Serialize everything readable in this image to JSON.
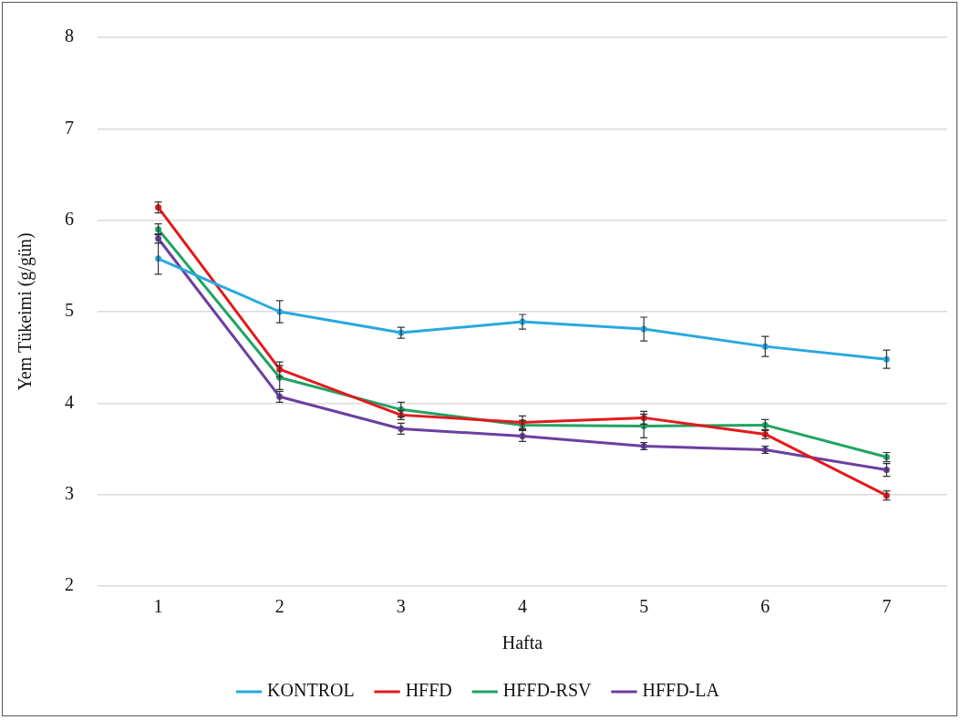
{
  "chart_data": {
    "type": "line",
    "xlabel": "Hafta",
    "ylabel": "Yem Tükeimi (g/gün)",
    "categories": [
      "1",
      "2",
      "3",
      "4",
      "5",
      "6",
      "7"
    ],
    "ylim": [
      2,
      8
    ],
    "yticks": [
      2,
      3,
      4,
      5,
      6,
      7,
      8
    ],
    "grid": "y",
    "legend": "bottom",
    "marker": "circle",
    "line_style": "solid",
    "series": [
      {
        "name": "KONTROL",
        "color": "#29a8e0",
        "values": [
          5.58,
          5.0,
          4.77,
          4.89,
          4.81,
          4.62,
          4.48
        ],
        "errors": [
          0.17,
          0.12,
          0.06,
          0.08,
          0.13,
          0.11,
          0.1
        ]
      },
      {
        "name": "HFFD",
        "color": "#e3191c",
        "values": [
          6.14,
          4.37,
          3.87,
          3.79,
          3.84,
          3.66,
          2.99
        ],
        "errors": [
          0.06,
          0.08,
          0.05,
          0.07,
          0.07,
          0.05,
          0.05
        ]
      },
      {
        "name": "HFFD-RSV",
        "color": "#1fa463",
        "values": [
          5.9,
          4.28,
          3.93,
          3.76,
          3.75,
          3.76,
          3.41
        ],
        "errors": [
          0.06,
          0.13,
          0.08,
          0.05,
          0.13,
          0.06,
          0.05
        ]
      },
      {
        "name": "HFFD-LA",
        "color": "#6b3fa0",
        "values": [
          5.8,
          4.07,
          3.72,
          3.64,
          3.53,
          3.49,
          3.27
        ],
        "errors": [
          0.05,
          0.06,
          0.06,
          0.06,
          0.04,
          0.04,
          0.07
        ]
      }
    ]
  }
}
